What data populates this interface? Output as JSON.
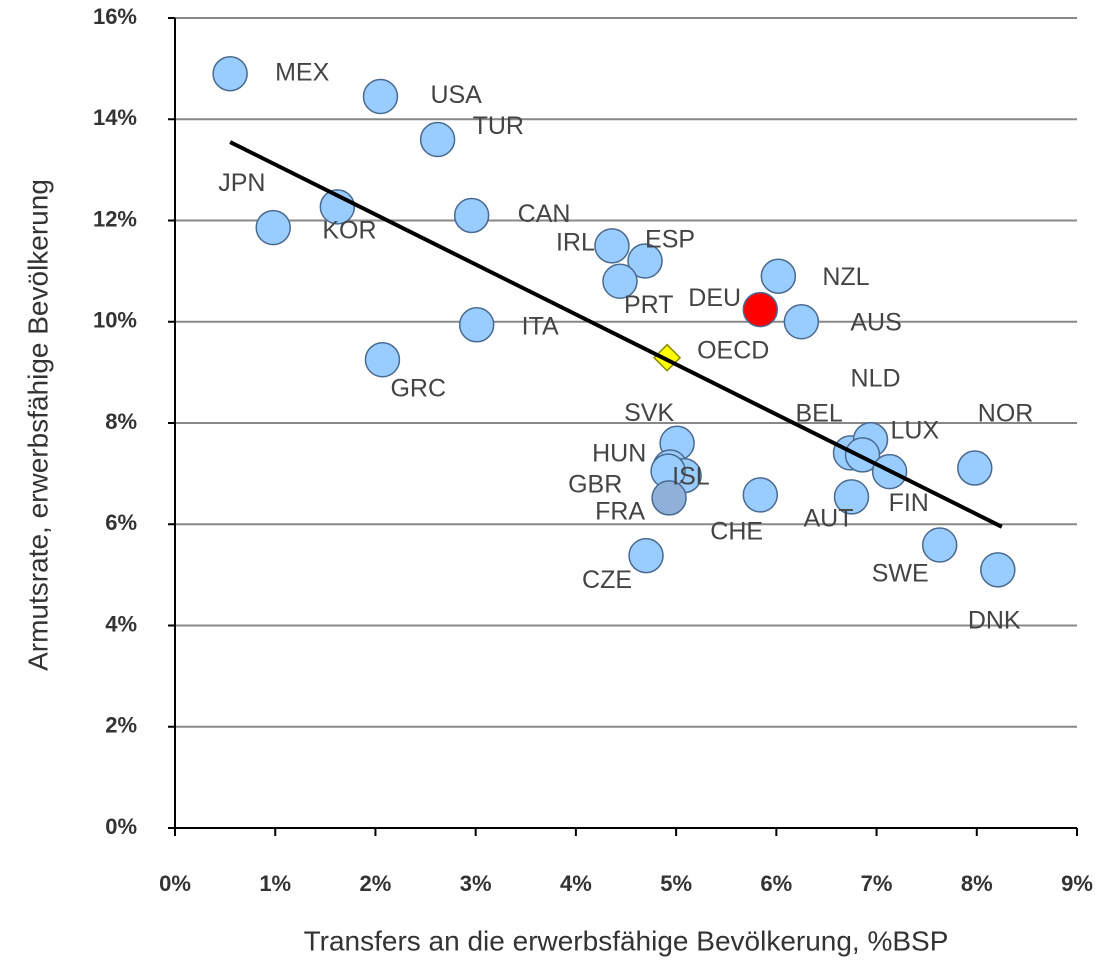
{
  "chart_data": {
    "type": "scatter",
    "x_label": "Transfers an die erwerbsfähige Bevölkerung, %BSP",
    "y_label": "Armutsrate, erwerbsfähige Bevölkerung",
    "labels": [
      "MEX",
      "USA",
      "TUR",
      "JPN",
      "KOR",
      "CAN",
      "IRL",
      "ESP",
      "PRT",
      "DEU",
      "NZL",
      "AUS",
      "ITA",
      "GRC",
      "OECD",
      "SVK",
      "HUN",
      "ISL",
      "GBR",
      "FRA",
      "CZE",
      "CHE",
      "AUT",
      "BEL",
      "LUX",
      "NLD",
      "FIN",
      "NOR",
      "SWE",
      "DNK"
    ],
    "x": [
      0.55,
      2.05,
      2.62,
      0.98,
      1.62,
      2.96,
      4.36,
      4.69,
      4.44,
      5.84,
      6.02,
      6.25,
      3.01,
      2.07,
      4.91,
      5.01,
      4.94,
      5.08,
      4.92,
      4.93,
      4.7,
      5.84,
      6.75,
      6.74,
      6.94,
      6.86,
      7.13,
      7.98,
      7.63,
      8.21
    ],
    "y": [
      14.9,
      14.45,
      13.6,
      11.86,
      12.27,
      12.1,
      11.5,
      11.2,
      10.8,
      10.24,
      10.9,
      10.0,
      9.94,
      9.25,
      9.29,
      7.6,
      7.13,
      6.96,
      7.05,
      6.52,
      5.38,
      6.58,
      6.54,
      7.41,
      7.67,
      7.37,
      7.04,
      7.11,
      5.59,
      5.1
    ],
    "colors": [
      "#99ccff",
      "#99ccff",
      "#99ccff",
      "#99ccff",
      "#99ccff",
      "#99ccff",
      "#99ccff",
      "#99ccff",
      "#99ccff",
      "#ff0000",
      "#99ccff",
      "#99ccff",
      "#99ccff",
      "#99ccff",
      "#ffff00",
      "#99ccff",
      "#99ccff",
      "#99ccff",
      "#99ccff",
      "#8fb0d8",
      "#99ccff",
      "#99ccff",
      "#99ccff",
      "#99ccff",
      "#99ccff",
      "#99ccff",
      "#99ccff",
      "#99ccff",
      "#99ccff",
      "#99ccff"
    ],
    "markers": [
      "circle",
      "circle",
      "circle",
      "circle",
      "circle",
      "circle",
      "circle",
      "circle",
      "circle",
      "circle",
      "circle",
      "circle",
      "circle",
      "circle",
      "diamond",
      "circle",
      "circle",
      "circle",
      "circle",
      "circle",
      "circle",
      "circle",
      "circle",
      "circle",
      "circle",
      "circle",
      "circle",
      "circle",
      "circle",
      "circle"
    ],
    "trendline": {
      "x": [
        0.55,
        8.25
      ],
      "y": [
        13.55,
        5.95
      ],
      "color": "#000000"
    },
    "xlim": [
      0,
      9
    ],
    "ylim": [
      0,
      16
    ],
    "xticks": [
      {
        "value": 0,
        "label": "0%"
      },
      {
        "value": 1,
        "label": "1%"
      },
      {
        "value": 2,
        "label": "2%"
      },
      {
        "value": 3,
        "label": "3%"
      },
      {
        "value": 4,
        "label": "4%"
      },
      {
        "value": 5,
        "label": "5%"
      },
      {
        "value": 6,
        "label": "6%"
      },
      {
        "value": 7,
        "label": "7%"
      },
      {
        "value": 8,
        "label": "8%"
      },
      {
        "value": 9,
        "label": "9%"
      }
    ],
    "yticks": [
      {
        "value": 0,
        "label": "0%"
      },
      {
        "value": 2,
        "label": "2%"
      },
      {
        "value": 4,
        "label": "4%"
      },
      {
        "value": 6,
        "label": "6%"
      },
      {
        "value": 8,
        "label": "8%"
      },
      {
        "value": 10,
        "label": "10%"
      },
      {
        "value": 12,
        "label": "12%"
      },
      {
        "value": 14,
        "label": "14%"
      },
      {
        "value": 16,
        "label": "16%"
      }
    ],
    "grid": true
  }
}
